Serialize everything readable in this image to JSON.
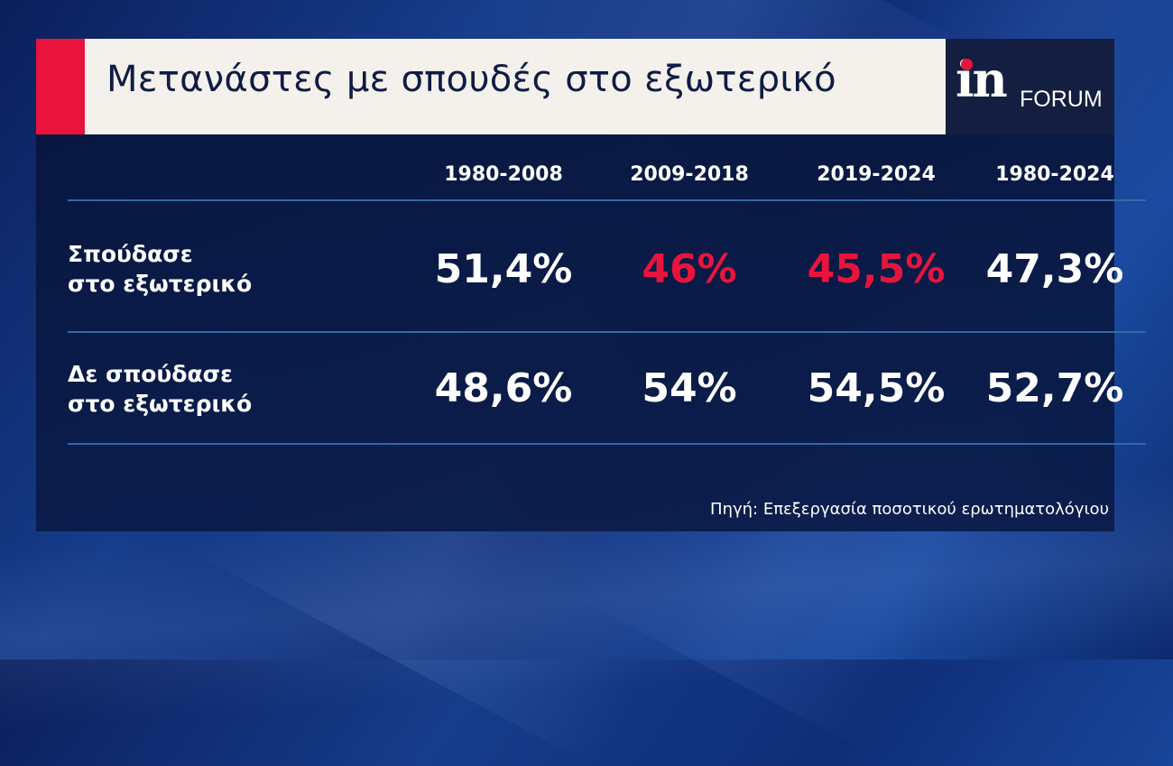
{
  "header": {
    "title": "Μετανάστες με σπουδές στο εξωτερικό"
  },
  "logo": {
    "mark": "in",
    "word": "FORUM"
  },
  "colors": {
    "accent_red": "#e8143c",
    "title_bar": "#f4f1ec",
    "title_text": "#0f1c45",
    "logo_bg": "#141e40",
    "panel_bg": "#0a1a46",
    "rule": "#2e6aa8"
  },
  "chart_data": {
    "type": "table",
    "columns": [
      "1980-2008",
      "2009-2018",
      "2019-2024",
      "1980-2024"
    ],
    "rows": [
      {
        "label_line1": "Σπούδασε",
        "label_line2": "στο εξωτερικό",
        "values": [
          "51,4%",
          "46%",
          "45,5%",
          "47,3%"
        ],
        "highlighted": [
          false,
          true,
          true,
          false
        ]
      },
      {
        "label_line1": "Δε σπούδασε",
        "label_line2": "στο εξωτερικό",
        "values": [
          "48,6%",
          "54%",
          "54,5%",
          "52,7%"
        ],
        "highlighted": [
          false,
          false,
          false,
          false
        ]
      }
    ],
    "source": "Πηγή: Επεξεργασία ποσοτικού ερωτηματολόγιου"
  }
}
